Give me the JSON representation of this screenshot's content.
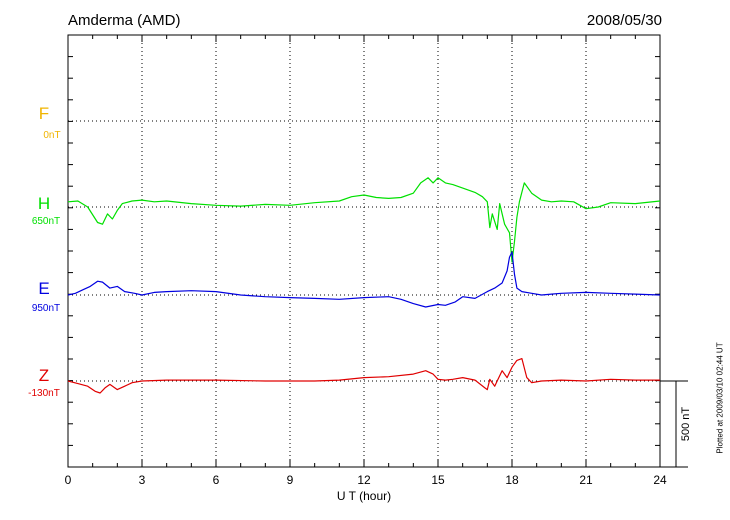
{
  "header": {
    "station": "Amderma (AMD)",
    "date": "2008/05/30"
  },
  "footer": {
    "plotted": "Plotted at 2009/03/10 02:44 UT"
  },
  "colors": {
    "F": "#f0b400",
    "H": "#00e000",
    "E": "#0000e0",
    "Z": "#e00000",
    "grid": "#000000"
  },
  "chart_data": {
    "type": "line",
    "xlabel": "U T (hour)",
    "xlim": [
      0,
      24
    ],
    "x_ticks": [
      "0",
      "3",
      "6",
      "9",
      "12",
      "15",
      "18",
      "21",
      "24"
    ],
    "scale_bar": "500 nT",
    "channels": [
      {
        "name": "F",
        "baseline": "0nT"
      },
      {
        "name": "H",
        "baseline": "650nT"
      },
      {
        "name": "E",
        "baseline": "950nT"
      },
      {
        "name": "Z",
        "baseline": "-130nT"
      }
    ],
    "series": [
      {
        "name": "H",
        "unit": "nT_offset",
        "x": [
          0,
          0.4,
          0.8,
          1.2,
          1.4,
          1.6,
          1.8,
          2.0,
          2.2,
          2.6,
          3.0,
          3.5,
          4,
          5,
          6,
          7,
          8,
          9,
          10,
          11,
          11.5,
          12,
          12.5,
          13,
          13.5,
          14,
          14.3,
          14.6,
          14.8,
          15.0,
          15.3,
          15.6,
          16.0,
          16.5,
          16.8,
          17.0,
          17.1,
          17.2,
          17.4,
          17.5,
          17.7,
          17.9,
          18.0,
          18.1,
          18.2,
          18.3,
          18.5,
          18.8,
          19.2,
          19.6,
          20,
          20.5,
          21,
          21.5,
          22,
          23,
          24
        ],
        "y": [
          30,
          35,
          0,
          -90,
          -100,
          -40,
          -70,
          -20,
          20,
          35,
          40,
          30,
          35,
          20,
          10,
          5,
          15,
          10,
          25,
          35,
          60,
          70,
          55,
          50,
          55,
          80,
          140,
          170,
          140,
          170,
          140,
          130,
          110,
          85,
          60,
          30,
          -120,
          -40,
          -130,
          20,
          -100,
          -150,
          -320,
          -200,
          -60,
          30,
          140,
          80,
          40,
          30,
          35,
          30,
          -10,
          0,
          25,
          20,
          35
        ]
      },
      {
        "name": "E",
        "unit": "nT_offset",
        "x": [
          0,
          0.3,
          0.6,
          0.9,
          1.2,
          1.4,
          1.7,
          2.0,
          2.3,
          2.7,
          3.0,
          3.5,
          4,
          5,
          6,
          7,
          8,
          9,
          10,
          11,
          12,
          13,
          13.5,
          14,
          14.5,
          15.0,
          15.3,
          15.7,
          16,
          16.5,
          17.0,
          17.3,
          17.6,
          17.8,
          17.9,
          18.0,
          18.1,
          18.2,
          18.4,
          18.8,
          19.2,
          19.6,
          20,
          21,
          22,
          23,
          24
        ],
        "y": [
          0,
          10,
          30,
          50,
          80,
          75,
          40,
          50,
          20,
          10,
          0,
          15,
          20,
          25,
          20,
          0,
          -10,
          -15,
          -20,
          -25,
          -15,
          -10,
          -25,
          -50,
          -70,
          -55,
          -60,
          -40,
          -10,
          -20,
          20,
          40,
          70,
          140,
          220,
          250,
          120,
          40,
          20,
          10,
          0,
          5,
          10,
          15,
          10,
          5,
          0
        ]
      },
      {
        "name": "Z",
        "unit": "nT_offset",
        "x": [
          0,
          0.4,
          0.8,
          1.1,
          1.3,
          1.5,
          1.7,
          2.0,
          2.3,
          2.6,
          3.0,
          4,
          6,
          8,
          10,
          11,
          12,
          13,
          14,
          14.5,
          14.8,
          15.0,
          15.3,
          15.6,
          16.0,
          16.5,
          16.9,
          17.0,
          17.1,
          17.3,
          17.6,
          17.8,
          18.0,
          18.2,
          18.4,
          18.6,
          18.8,
          19.2,
          20,
          21,
          22,
          23,
          24
        ],
        "y": [
          0,
          -15,
          -30,
          -60,
          -70,
          -40,
          -20,
          -50,
          -30,
          -10,
          0,
          5,
          5,
          0,
          0,
          5,
          20,
          25,
          40,
          60,
          40,
          10,
          5,
          10,
          20,
          5,
          -40,
          -50,
          10,
          -30,
          60,
          20,
          80,
          120,
          130,
          20,
          -10,
          0,
          5,
          0,
          10,
          5,
          5
        ]
      },
      {
        "name": "F",
        "unit": "nT_offset",
        "x": [],
        "y": []
      }
    ]
  }
}
